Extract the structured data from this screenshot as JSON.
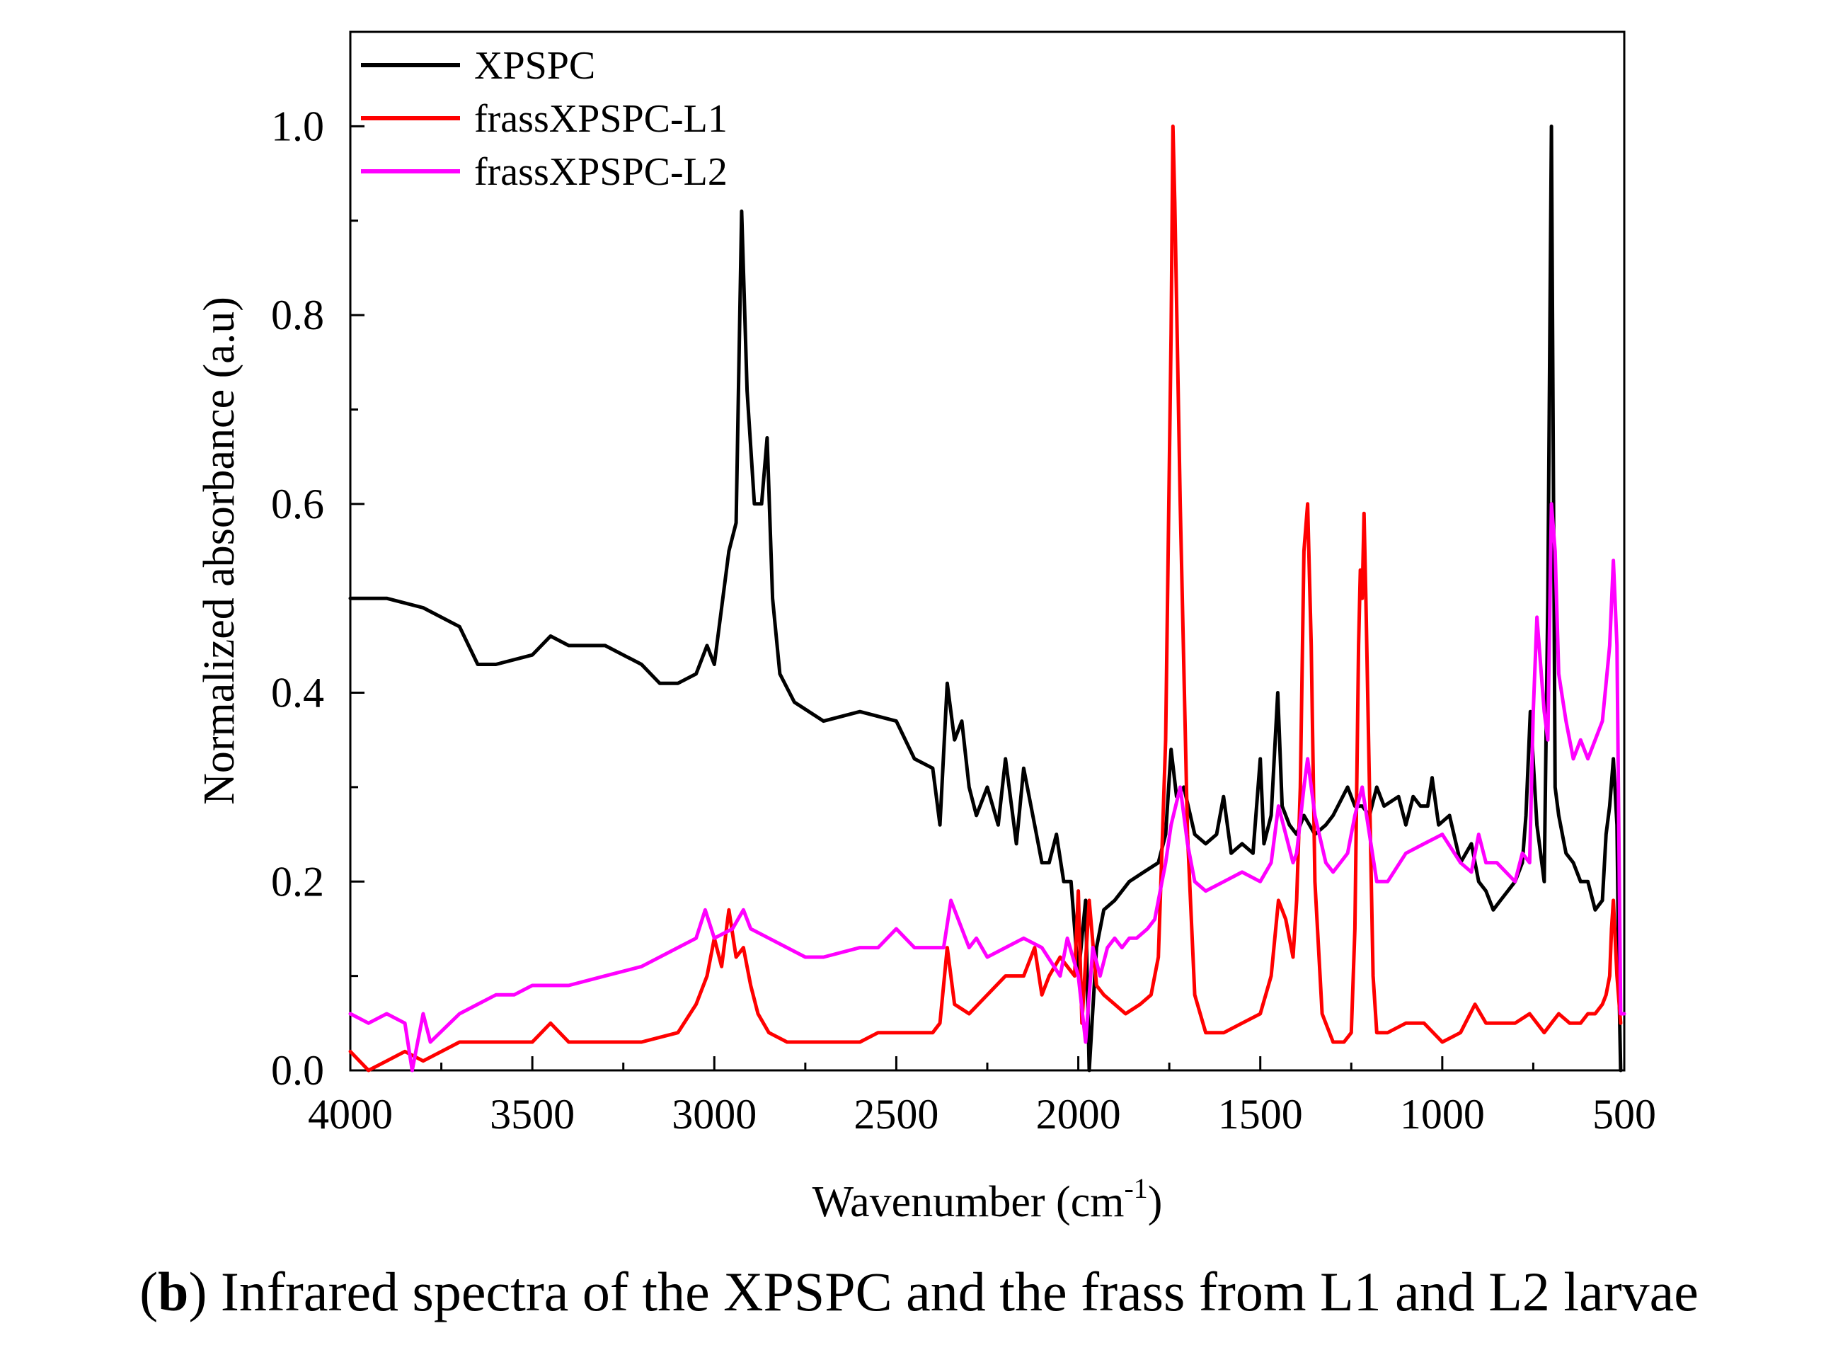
{
  "chart_data": {
    "type": "line",
    "title": "",
    "xlabel": "Wavenumber (cm",
    "xlabel_sup": "-1",
    "xlabel_close": ")",
    "ylabel": "Normalized absorbance (a.u)",
    "xlim": [
      4000,
      500
    ],
    "ylim": [
      0.0,
      1.1
    ],
    "x_ticks": [
      "4000",
      "3500",
      "3000",
      "2500",
      "2000",
      "1500",
      "1000",
      "500"
    ],
    "x_tick_values": [
      4000,
      3500,
      3000,
      2500,
      2000,
      1500,
      1000,
      500
    ],
    "y_ticks": [
      "0.0",
      "0.2",
      "0.4",
      "0.6",
      "0.8",
      "1.0"
    ],
    "y_tick_values": [
      0.0,
      0.2,
      0.4,
      0.6,
      0.8,
      1.0
    ],
    "legend_position": "top-left",
    "series": [
      {
        "name": "XPSPC",
        "color": "#000000",
        "x": [
          4000,
          3900,
          3800,
          3700,
          3650,
          3600,
          3500,
          3450,
          3400,
          3300,
          3200,
          3150,
          3100,
          3050,
          3020,
          3000,
          2960,
          2940,
          2925,
          2910,
          2890,
          2870,
          2855,
          2840,
          2820,
          2780,
          2700,
          2600,
          2500,
          2450,
          2400,
          2380,
          2360,
          2340,
          2320,
          2300,
          2280,
          2250,
          2220,
          2200,
          2170,
          2150,
          2120,
          2100,
          2080,
          2060,
          2040,
          2020,
          2000,
          1980,
          1970,
          1950,
          1930,
          1900,
          1860,
          1820,
          1780,
          1760,
          1745,
          1730,
          1710,
          1680,
          1650,
          1620,
          1601,
          1580,
          1550,
          1520,
          1500,
          1490,
          1470,
          1452,
          1440,
          1420,
          1400,
          1380,
          1350,
          1320,
          1300,
          1260,
          1240,
          1220,
          1200,
          1180,
          1160,
          1120,
          1100,
          1080,
          1060,
          1040,
          1028,
          1010,
          980,
          950,
          920,
          900,
          880,
          860,
          840,
          820,
          800,
          780,
          770,
          758,
          740,
          720,
          710,
          700,
          690,
          680,
          660,
          640,
          620,
          600,
          580,
          560,
          550,
          540,
          530,
          520,
          515,
          510
        ],
        "values": [
          0.5,
          0.5,
          0.49,
          0.47,
          0.43,
          0.43,
          0.44,
          0.46,
          0.45,
          0.45,
          0.43,
          0.41,
          0.41,
          0.42,
          0.45,
          0.43,
          0.55,
          0.58,
          0.91,
          0.72,
          0.6,
          0.6,
          0.67,
          0.5,
          0.42,
          0.39,
          0.37,
          0.38,
          0.37,
          0.33,
          0.32,
          0.26,
          0.41,
          0.35,
          0.37,
          0.3,
          0.27,
          0.3,
          0.26,
          0.33,
          0.24,
          0.32,
          0.26,
          0.22,
          0.22,
          0.25,
          0.2,
          0.2,
          0.1,
          0.18,
          0.0,
          0.13,
          0.17,
          0.18,
          0.2,
          0.21,
          0.22,
          0.25,
          0.34,
          0.29,
          0.3,
          0.25,
          0.24,
          0.25,
          0.29,
          0.23,
          0.24,
          0.23,
          0.33,
          0.24,
          0.27,
          0.4,
          0.28,
          0.26,
          0.25,
          0.27,
          0.25,
          0.26,
          0.27,
          0.3,
          0.28,
          0.28,
          0.27,
          0.3,
          0.28,
          0.29,
          0.26,
          0.29,
          0.28,
          0.28,
          0.31,
          0.26,
          0.27,
          0.22,
          0.24,
          0.2,
          0.19,
          0.17,
          0.18,
          0.19,
          0.2,
          0.22,
          0.27,
          0.38,
          0.26,
          0.2,
          0.5,
          1.0,
          0.3,
          0.27,
          0.23,
          0.22,
          0.2,
          0.2,
          0.17,
          0.18,
          0.25,
          0.28,
          0.33,
          0.26,
          0.1,
          0.0
        ]
      },
      {
        "name": "frassXPSPC-L1",
        "color": "#ff0000",
        "x": [
          4000,
          3950,
          3900,
          3850,
          3800,
          3700,
          3600,
          3500,
          3450,
          3400,
          3300,
          3200,
          3100,
          3050,
          3020,
          3000,
          2980,
          2960,
          2940,
          2920,
          2900,
          2880,
          2850,
          2800,
          2700,
          2600,
          2550,
          2500,
          2450,
          2400,
          2380,
          2360,
          2340,
          2300,
          2250,
          2200,
          2150,
          2120,
          2100,
          2080,
          2050,
          2030,
          2010,
          2000,
          1990,
          1970,
          1950,
          1930,
          1900,
          1870,
          1830,
          1800,
          1780,
          1760,
          1745,
          1740,
          1735,
          1720,
          1700,
          1680,
          1650,
          1600,
          1550,
          1500,
          1470,
          1450,
          1430,
          1410,
          1400,
          1390,
          1380,
          1370,
          1360,
          1350,
          1330,
          1300,
          1270,
          1250,
          1240,
          1230,
          1225,
          1220,
          1215,
          1210,
          1200,
          1190,
          1180,
          1150,
          1100,
          1050,
          1000,
          950,
          910,
          880,
          850,
          800,
          760,
          720,
          700,
          680,
          650,
          620,
          600,
          580,
          560,
          550,
          540,
          535,
          530,
          520,
          510
        ],
        "values": [
          0.02,
          0.0,
          0.01,
          0.02,
          0.01,
          0.03,
          0.03,
          0.03,
          0.05,
          0.03,
          0.03,
          0.03,
          0.04,
          0.07,
          0.1,
          0.14,
          0.11,
          0.17,
          0.12,
          0.13,
          0.09,
          0.06,
          0.04,
          0.03,
          0.03,
          0.03,
          0.04,
          0.04,
          0.04,
          0.04,
          0.05,
          0.13,
          0.07,
          0.06,
          0.08,
          0.1,
          0.1,
          0.13,
          0.08,
          0.1,
          0.12,
          0.11,
          0.1,
          0.19,
          0.05,
          0.18,
          0.09,
          0.08,
          0.07,
          0.06,
          0.07,
          0.08,
          0.12,
          0.35,
          0.78,
          1.0,
          0.92,
          0.6,
          0.25,
          0.08,
          0.04,
          0.04,
          0.05,
          0.06,
          0.1,
          0.18,
          0.16,
          0.12,
          0.18,
          0.3,
          0.55,
          0.6,
          0.45,
          0.2,
          0.06,
          0.03,
          0.03,
          0.04,
          0.15,
          0.45,
          0.53,
          0.5,
          0.59,
          0.5,
          0.3,
          0.1,
          0.04,
          0.04,
          0.05,
          0.05,
          0.03,
          0.04,
          0.07,
          0.05,
          0.05,
          0.05,
          0.06,
          0.04,
          0.05,
          0.06,
          0.05,
          0.05,
          0.06,
          0.06,
          0.07,
          0.08,
          0.1,
          0.15,
          0.18,
          0.1,
          0.05
        ]
      },
      {
        "name": "frassXPSPC-L2",
        "color": "#ff00ff",
        "x": [
          4000,
          3950,
          3900,
          3850,
          3830,
          3800,
          3780,
          3700,
          3650,
          3600,
          3550,
          3500,
          3400,
          3300,
          3200,
          3100,
          3050,
          3025,
          3000,
          2950,
          2920,
          2900,
          2850,
          2800,
          2750,
          2700,
          2600,
          2550,
          2500,
          2450,
          2400,
          2370,
          2350,
          2330,
          2300,
          2280,
          2250,
          2200,
          2150,
          2100,
          2050,
          2030,
          2000,
          1980,
          1960,
          1940,
          1920,
          1900,
          1880,
          1860,
          1840,
          1810,
          1790,
          1760,
          1745,
          1720,
          1700,
          1680,
          1650,
          1600,
          1550,
          1500,
          1470,
          1450,
          1430,
          1410,
          1400,
          1380,
          1370,
          1350,
          1320,
          1300,
          1260,
          1240,
          1220,
          1200,
          1180,
          1150,
          1100,
          1050,
          1000,
          950,
          920,
          900,
          880,
          850,
          800,
          780,
          760,
          750,
          740,
          720,
          710,
          700,
          690,
          680,
          660,
          640,
          620,
          600,
          580,
          560,
          550,
          540,
          530,
          520,
          510,
          500
        ],
        "values": [
          0.06,
          0.05,
          0.06,
          0.05,
          0.0,
          0.06,
          0.03,
          0.06,
          0.07,
          0.08,
          0.08,
          0.09,
          0.09,
          0.1,
          0.11,
          0.13,
          0.14,
          0.17,
          0.14,
          0.15,
          0.17,
          0.15,
          0.14,
          0.13,
          0.12,
          0.12,
          0.13,
          0.13,
          0.15,
          0.13,
          0.13,
          0.13,
          0.18,
          0.16,
          0.13,
          0.14,
          0.12,
          0.13,
          0.14,
          0.13,
          0.1,
          0.14,
          0.1,
          0.03,
          0.13,
          0.1,
          0.13,
          0.14,
          0.13,
          0.14,
          0.14,
          0.15,
          0.16,
          0.22,
          0.26,
          0.3,
          0.24,
          0.2,
          0.19,
          0.2,
          0.21,
          0.2,
          0.22,
          0.28,
          0.25,
          0.22,
          0.23,
          0.3,
          0.33,
          0.27,
          0.22,
          0.21,
          0.23,
          0.27,
          0.3,
          0.25,
          0.2,
          0.2,
          0.23,
          0.24,
          0.25,
          0.22,
          0.21,
          0.25,
          0.22,
          0.22,
          0.2,
          0.23,
          0.22,
          0.38,
          0.48,
          0.38,
          0.35,
          0.6,
          0.55,
          0.42,
          0.37,
          0.33,
          0.35,
          0.33,
          0.35,
          0.37,
          0.41,
          0.45,
          0.54,
          0.45,
          0.06,
          0.06
        ]
      }
    ]
  },
  "caption": {
    "label": "b",
    "text": "Infrared spectra of the XPSPC and the frass from L1 and L2 larvae"
  }
}
